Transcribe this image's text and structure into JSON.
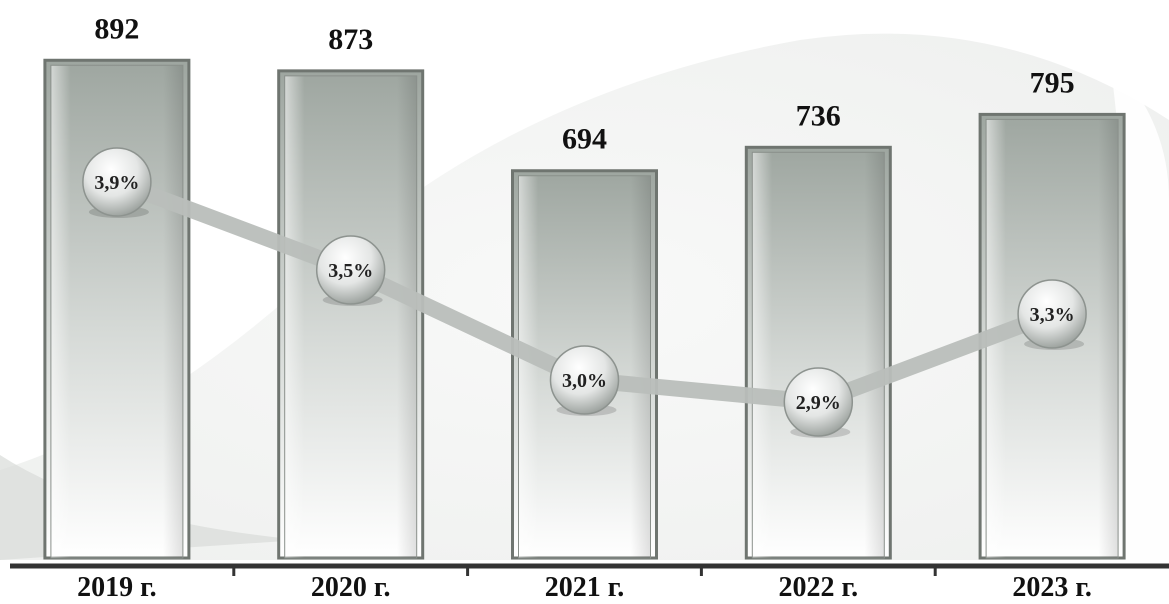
{
  "chart_data": {
    "type": "bar",
    "categories": [
      "2019 г.",
      "2020 г.",
      "2021 г.",
      "2022 г.",
      "2023 г."
    ],
    "values": [
      892,
      873,
      694,
      736,
      795
    ],
    "value_labels": [
      "892",
      "873",
      "694",
      "736",
      "795"
    ],
    "line_series": {
      "values": [
        3.9,
        3.5,
        3.0,
        2.9,
        3.3
      ],
      "labels": [
        "3,9%",
        "3,5%",
        "3,0%",
        "2,9%",
        "3,3%"
      ]
    },
    "title": "",
    "xlabel": "",
    "ylabel": "",
    "grid": false,
    "colors": {
      "bar_top": "#9ea6a0",
      "bar_bottom": "#ffffff",
      "bar_border": "#6f7570",
      "line": "#b9bebb",
      "baseline": "#333333"
    }
  }
}
